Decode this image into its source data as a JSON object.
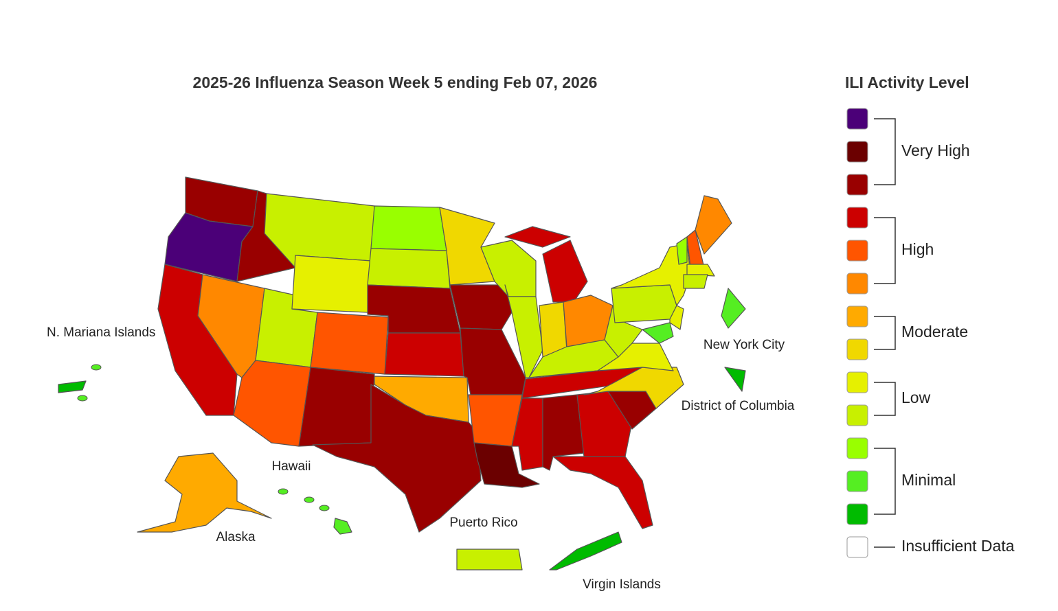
{
  "title": "2025-26 Influenza Season Week 5 ending Feb 07, 2026",
  "legend": {
    "title": "ILI Activity Level",
    "groups": [
      {
        "label": "Very High",
        "colors": [
          "#4b0078",
          "#6b0000",
          "#990000"
        ]
      },
      {
        "label": "High",
        "colors": [
          "#cc0000",
          "#ff5500",
          "#ff8800"
        ]
      },
      {
        "label": "Moderate",
        "colors": [
          "#ffaa00",
          "#f0d800"
        ]
      },
      {
        "label": "Low",
        "colors": [
          "#e6f000",
          "#c8f000"
        ]
      },
      {
        "label": "Minimal",
        "colors": [
          "#99ff00",
          "#55ee22",
          "#00bb00"
        ]
      },
      {
        "label": "Insufficient Data",
        "colors": [
          "#ffffff"
        ]
      }
    ]
  },
  "labels": [
    "N. Mariana Islands",
    "New York City",
    "District of Columbia",
    "Hawaii",
    "Alaska",
    "Puerto Rico",
    "Virgin Islands"
  ],
  "regions": [
    "#990000",
    "#4b0078",
    "#cc0000",
    "#990000",
    "#ff8800",
    "#c8f000",
    "#ff5500",
    "#c8f000",
    "#e6f000",
    "#ff5500",
    "#990000",
    "#99ff00",
    "#c8f000",
    "#990000",
    "#cc0000",
    "#ffaa00",
    "#990000",
    "#f0d800",
    "#990000",
    "#990000",
    "#ff5500",
    "#6b0000",
    "#c8f000",
    "#c8f000",
    "#cc0000",
    "#cc0000",
    "#f0d800",
    "#ff8800",
    "#c8f000",
    "#cc0000",
    "#cc0000",
    "#990000",
    "#cc0000",
    "#cc0000",
    "#990000",
    "#f0d800",
    "#e6f000",
    "#c8f000",
    "#c8f000",
    "#e6f000",
    "#55ee22",
    "#e6f000",
    "#99ff00",
    "#ff5500",
    "#ff8800",
    "#e6f000",
    "#c8f000",
    "#ffaa00",
    "#55ee22",
    "#c8f000",
    "#00bb00",
    "#00bb00",
    "#00bb00",
    "#55ee22"
  ]
}
